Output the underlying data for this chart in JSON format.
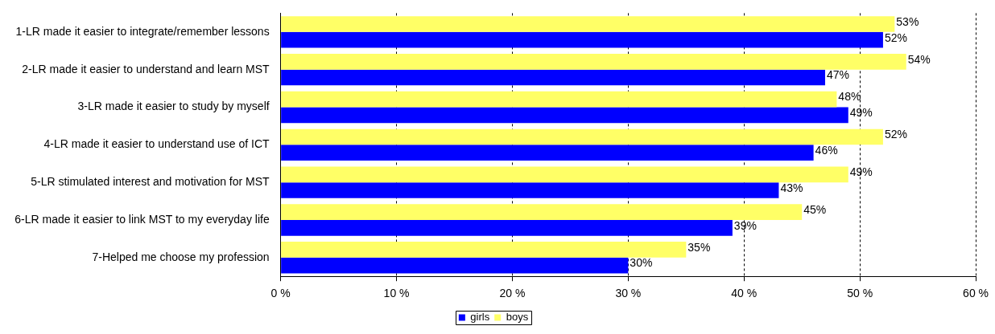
{
  "chart_data": {
    "type": "bar",
    "orientation": "horizontal",
    "categories": [
      "1-LR made it easier to integrate/remember lessons",
      "2-LR made it easier to understand and learn MST",
      "3-LR made it easier to study by myself",
      "4-LR made it easier to understand use of ICT",
      "5-LR stimulated interest and motivation for MST",
      "6-LR made it easier to link MST to my everyday life",
      "7-Helped me choose my profession"
    ],
    "series": [
      {
        "name": "boys",
        "color": "#ffff66",
        "values": [
          53,
          54,
          48,
          52,
          49,
          45,
          35
        ],
        "value_labels": [
          "53%",
          "54%",
          "48%",
          "52%",
          "49%",
          "45%",
          "35%"
        ]
      },
      {
        "name": "girls",
        "color": "#0000ff",
        "values": [
          52,
          47,
          49,
          46,
          43,
          39,
          30
        ],
        "value_labels": [
          "52%",
          "47%",
          "49%",
          "46%",
          "43%",
          "39%",
          "30%"
        ]
      }
    ],
    "xlim": [
      0,
      60
    ],
    "xticks": [
      {
        "value": 0,
        "label": "0 %"
      },
      {
        "value": 10,
        "label": "10 %"
      },
      {
        "value": 20,
        "label": "20 %"
      },
      {
        "value": 30,
        "label": "30 %"
      },
      {
        "value": 40,
        "label": "40 %"
      },
      {
        "value": 50,
        "label": "50 %"
      },
      {
        "value": 60,
        "label": "60 %"
      }
    ],
    "grid": "x",
    "legend": "bottom"
  }
}
